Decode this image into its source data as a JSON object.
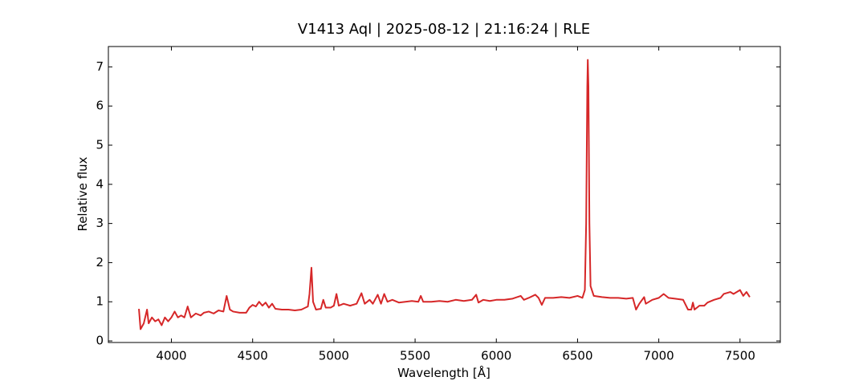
{
  "chart_data": {
    "type": "line",
    "title": "V1413 Aql | 2025-08-12 | 21:16:24 | RLE",
    "x_label": "Wavelength [Å]",
    "y_label": "Relative flux",
    "xlim": [
      3612,
      7748
    ],
    "ylim": [
      -0.04,
      7.52
    ],
    "xticks": [
      4000,
      4500,
      5000,
      5500,
      6000,
      6500,
      7000,
      7500
    ],
    "yticks": [
      0,
      1,
      2,
      3,
      4,
      5,
      6,
      7
    ],
    "x": [
      3800,
      3810,
      3830,
      3850,
      3860,
      3880,
      3900,
      3920,
      3940,
      3960,
      3980,
      4000,
      4020,
      4040,
      4060,
      4080,
      4100,
      4120,
      4150,
      4180,
      4200,
      4230,
      4260,
      4290,
      4320,
      4340,
      4360,
      4380,
      4420,
      4460,
      4480,
      4500,
      4520,
      4540,
      4560,
      4580,
      4600,
      4620,
      4640,
      4680,
      4720,
      4760,
      4800,
      4840,
      4850,
      4862,
      4872,
      4890,
      4920,
      4935,
      4950,
      4980,
      5000,
      5016,
      5030,
      5060,
      5100,
      5140,
      5170,
      5190,
      5220,
      5240,
      5270,
      5290,
      5310,
      5330,
      5360,
      5400,
      5440,
      5480,
      5520,
      5535,
      5550,
      5600,
      5650,
      5700,
      5750,
      5800,
      5850,
      5876,
      5890,
      5920,
      5960,
      6000,
      6050,
      6100,
      6150,
      6170,
      6200,
      6240,
      6260,
      6280,
      6300,
      6350,
      6400,
      6450,
      6500,
      6530,
      6545,
      6553,
      6560,
      6563,
      6567,
      6573,
      6580,
      6600,
      6650,
      6700,
      6750,
      6800,
      6840,
      6860,
      6880,
      6910,
      6920,
      6960,
      7000,
      7030,
      7060,
      7100,
      7150,
      7180,
      7200,
      7210,
      7220,
      7250,
      7280,
      7300,
      7340,
      7380,
      7400,
      7440,
      7460,
      7500,
      7520,
      7540,
      7560
    ],
    "series": [
      {
        "name": "Relative flux",
        "color": "#d62728",
        "values": [
          0.82,
          0.3,
          0.45,
          0.8,
          0.45,
          0.6,
          0.5,
          0.55,
          0.4,
          0.6,
          0.5,
          0.6,
          0.75,
          0.6,
          0.65,
          0.6,
          0.88,
          0.6,
          0.7,
          0.65,
          0.72,
          0.75,
          0.7,
          0.78,
          0.75,
          1.15,
          0.8,
          0.75,
          0.72,
          0.72,
          0.85,
          0.92,
          0.88,
          1.0,
          0.9,
          0.98,
          0.85,
          0.95,
          0.82,
          0.8,
          0.8,
          0.78,
          0.8,
          0.88,
          1.2,
          1.87,
          1.0,
          0.8,
          0.82,
          1.05,
          0.85,
          0.85,
          0.9,
          1.2,
          0.9,
          0.95,
          0.9,
          0.95,
          1.22,
          0.95,
          1.05,
          0.95,
          1.18,
          0.95,
          1.2,
          1.0,
          1.05,
          0.98,
          1.0,
          1.02,
          1.0,
          1.15,
          1.0,
          1.0,
          1.02,
          1.0,
          1.05,
          1.02,
          1.05,
          1.18,
          0.98,
          1.05,
          1.02,
          1.05,
          1.05,
          1.08,
          1.15,
          1.05,
          1.1,
          1.18,
          1.1,
          0.92,
          1.1,
          1.1,
          1.12,
          1.1,
          1.15,
          1.1,
          1.3,
          3.0,
          6.5,
          7.18,
          6.5,
          3.0,
          1.4,
          1.15,
          1.12,
          1.1,
          1.1,
          1.08,
          1.1,
          0.8,
          0.95,
          1.12,
          0.95,
          1.05,
          1.1,
          1.2,
          1.1,
          1.08,
          1.05,
          0.8,
          0.8,
          0.98,
          0.8,
          0.9,
          0.9,
          0.98,
          1.05,
          1.1,
          1.2,
          1.25,
          1.2,
          1.3,
          1.15,
          1.25,
          1.12
        ]
      }
    ]
  }
}
